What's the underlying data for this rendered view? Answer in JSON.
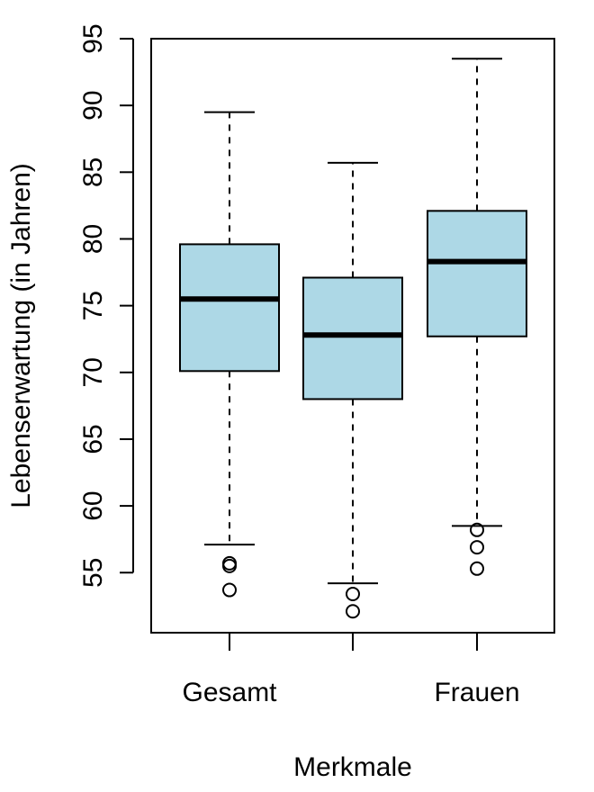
{
  "chart_data": {
    "type": "boxplot",
    "xlabel": "Merkmale",
    "ylabel": "Lebenserwartung (in Jahren)",
    "ylim": [
      50.5,
      95
    ],
    "yticks": [
      55,
      60,
      65,
      70,
      75,
      80,
      85,
      90,
      95
    ],
    "categories": [
      "Gesamt",
      "",
      "Frauen"
    ],
    "box_color": "#add8e6",
    "boxes": [
      {
        "whisker_low": 57.1,
        "q1": 70.1,
        "median": 75.5,
        "q3": 79.6,
        "whisker_high": 89.5,
        "outliers": [
          55.7,
          55.5,
          53.7
        ]
      },
      {
        "whisker_low": 54.2,
        "q1": 68.0,
        "median": 72.8,
        "q3": 77.1,
        "whisker_high": 85.7,
        "outliers": [
          53.4,
          52.1
        ]
      },
      {
        "whisker_low": 58.5,
        "q1": 72.7,
        "median": 78.3,
        "q3": 82.1,
        "whisker_high": 93.5,
        "outliers": [
          58.2,
          56.9,
          55.3
        ]
      }
    ]
  }
}
